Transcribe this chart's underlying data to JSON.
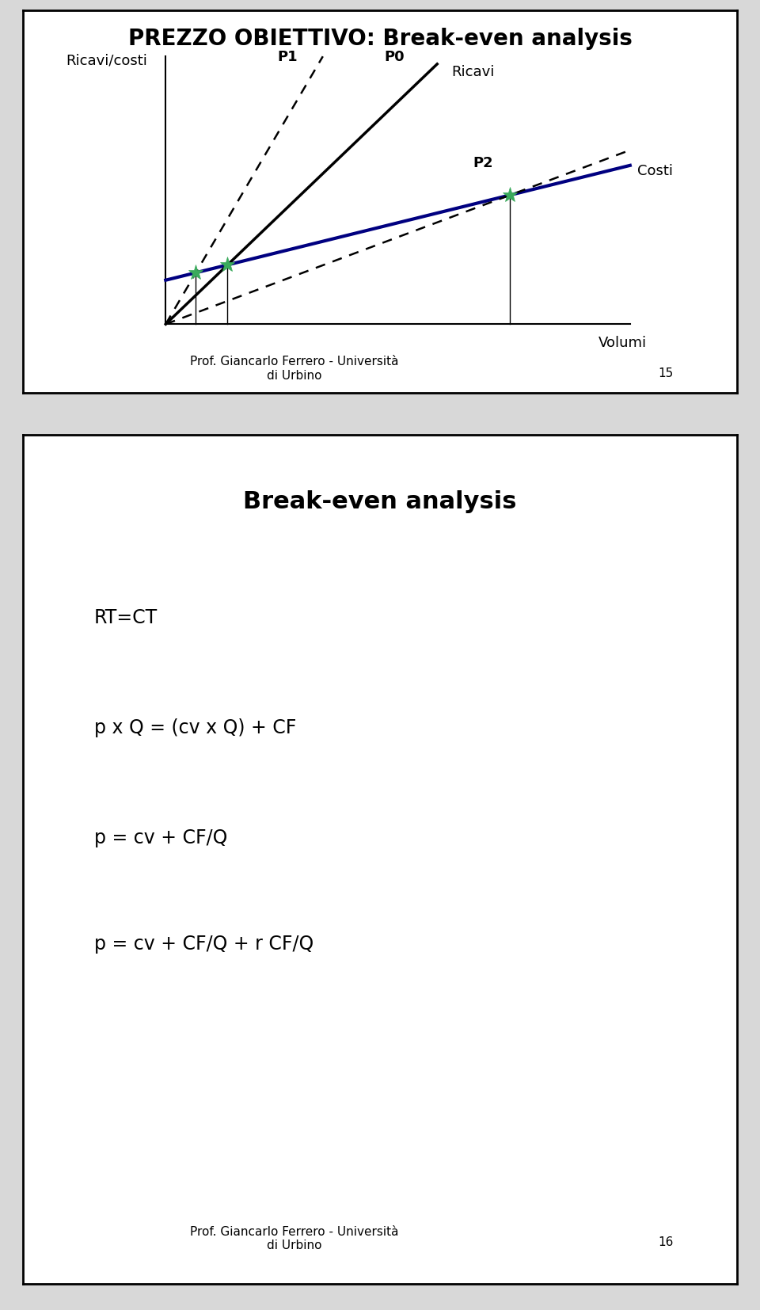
{
  "slide1": {
    "title": "PREZZO OBIETTIVO: Break-even analysis",
    "ylabel": "Ricavi/costi",
    "xlabel": "Volumi",
    "footer": "Prof. Giancarlo Ferrero - Università\ndi Urbino",
    "page_num": "15",
    "labels": {
      "P0": "P0",
      "P1": "P1",
      "P2": "P2",
      "Ricavi": "Ricavi",
      "Costi": "Costi"
    }
  },
  "slide2": {
    "title": "Break-even analysis",
    "lines": [
      "RT=CT",
      "p x Q = (cv x Q) + CF",
      "p = cv + CF/Q",
      "p = cv + CF/Q + r CF/Q"
    ],
    "footer": "Prof. Giancarlo Ferrero - Università\ndi Urbino",
    "page_num": "16"
  },
  "bg_color": "#ffffff",
  "gap_color": "#d8d8d8",
  "border_color": "#000000",
  "text_color": "#000000",
  "title1_fontsize": 20,
  "title2_fontsize": 22,
  "body_fontsize": 17,
  "footer_fontsize": 11,
  "chart_label_fontsize": 13
}
